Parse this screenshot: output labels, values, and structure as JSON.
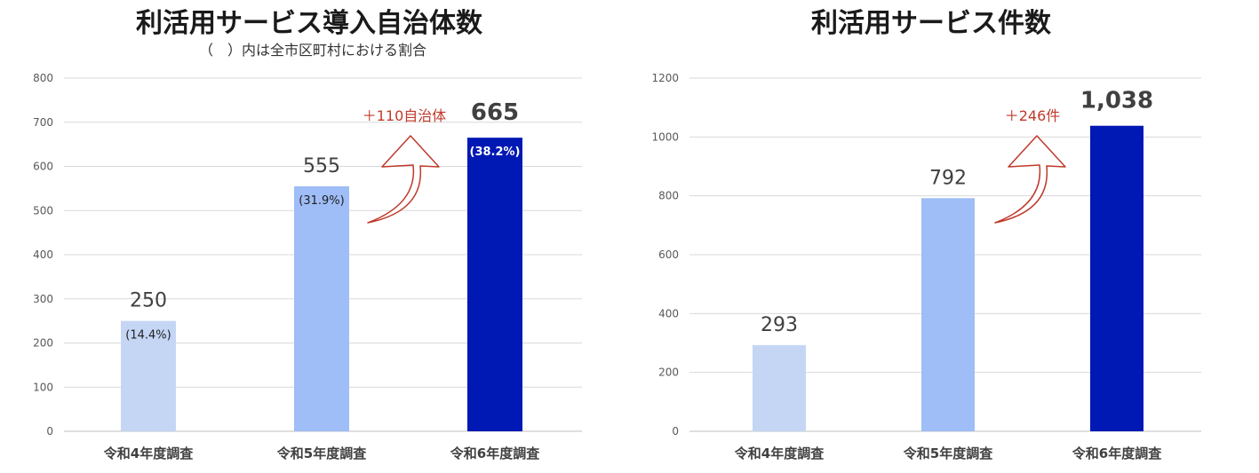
{
  "chart_data": [
    {
      "type": "bar",
      "title": "利活用サービス導入自治体数",
      "subtitle": "（　）内は全市区町村における割合",
      "categories": [
        "令和4年度調査",
        "令和5年度調査",
        "令和6年度調査"
      ],
      "values": [
        250,
        555,
        665
      ],
      "value_labels": [
        "250",
        "555",
        "665"
      ],
      "percent_labels": [
        "(14.4%)",
        "(31.9%)",
        "(38.2%)"
      ],
      "bar_colors": [
        "#c5d6f5",
        "#9fbdf7",
        "#0018b4"
      ],
      "ylim": [
        0,
        800
      ],
      "yticks": [
        0,
        100,
        200,
        300,
        400,
        500,
        600,
        700,
        800
      ],
      "grid": true,
      "annotation": "＋110自治体"
    },
    {
      "type": "bar",
      "title": "利活用サービス件数",
      "categories": [
        "令和4年度調査",
        "令和5年度調査",
        "令和6年度調査"
      ],
      "values": [
        293,
        792,
        1038
      ],
      "value_labels": [
        "293",
        "792",
        "1,038"
      ],
      "bar_colors": [
        "#c5d6f5",
        "#9fbdf7",
        "#0018b4"
      ],
      "ylim": [
        0,
        1200
      ],
      "yticks": [
        0,
        200,
        400,
        600,
        800,
        1000,
        1200
      ],
      "grid": true,
      "annotation": "＋246件"
    }
  ]
}
